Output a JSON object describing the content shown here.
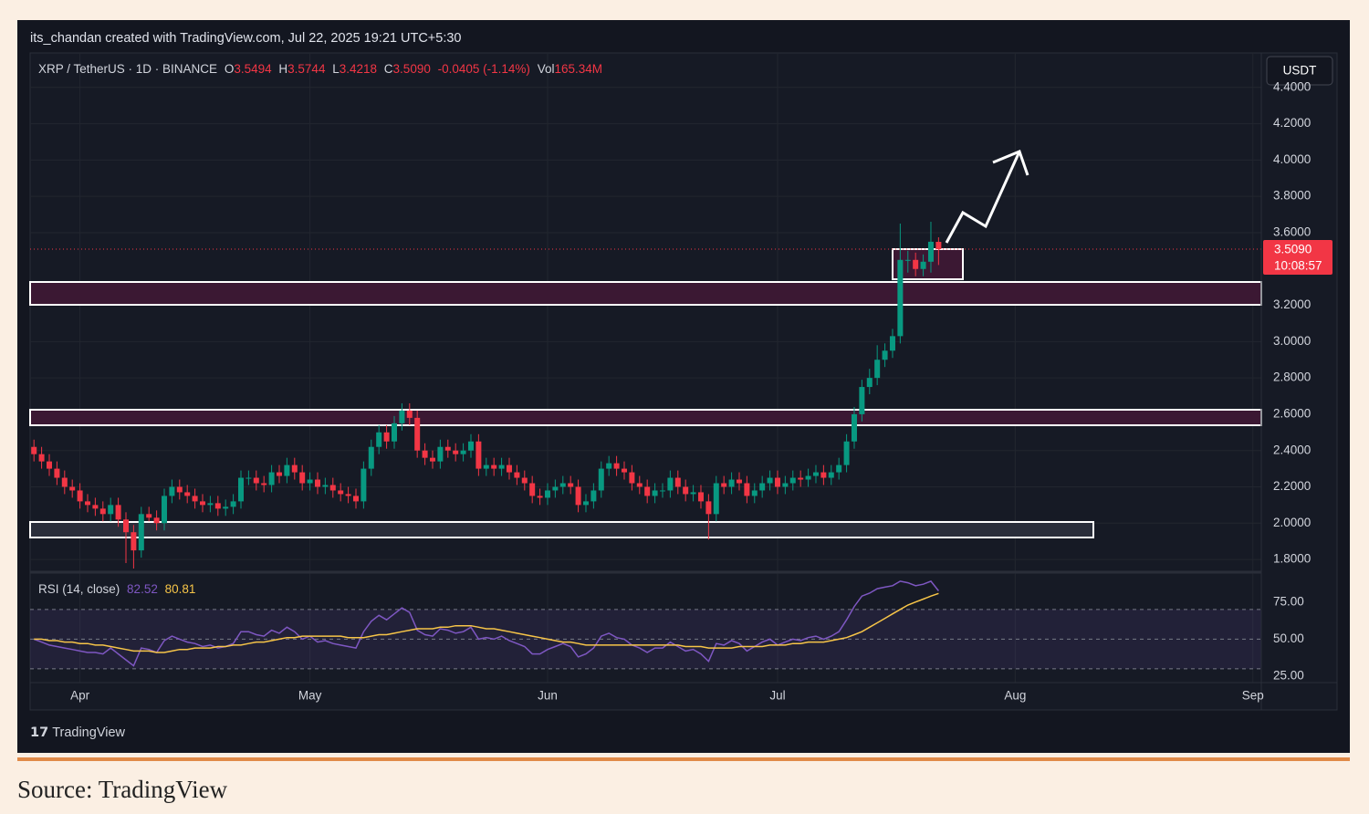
{
  "header": "its_chandan created with TradingView.com, Jul 22, 2025 19:21 UTC+5:30",
  "footer_logo": "TradingView",
  "source": "Source: TradingView",
  "chart_data": [
    {
      "type": "candlestick",
      "title": "XRP / TetherUS · 1D · BINANCE",
      "legend": {
        "fields": [
          {
            "key": "O",
            "value": "3.5494"
          },
          {
            "key": "H",
            "value": "3.5744"
          },
          {
            "key": "L",
            "value": "3.4218"
          },
          {
            "key": "C",
            "value": "3.5090"
          }
        ],
        "change": "-0.0405 (-1.14%)",
        "vol_key": "Vol",
        "vol": "165.34M"
      },
      "currency": "USDT",
      "last_price_label": "3.5090",
      "countdown": "10:08:57",
      "up_color": "#089981",
      "down_color": "#f23645",
      "open": [
        2.42,
        2.38,
        2.34,
        2.3,
        2.25,
        2.2,
        2.18,
        2.12,
        2.1,
        2.08,
        2.05,
        2.1,
        2.02,
        1.95,
        1.85,
        2.05,
        2.03,
        2.0,
        2.15,
        2.2,
        2.17,
        2.15,
        2.12,
        2.1,
        2.11,
        2.08,
        2.09,
        2.12,
        2.25,
        2.25,
        2.22,
        2.21,
        2.28,
        2.26,
        2.32,
        2.28,
        2.22,
        2.24,
        2.2,
        2.21,
        2.18,
        2.16,
        2.15,
        2.12,
        2.3,
        2.42,
        2.5,
        2.45,
        2.55,
        2.62,
        2.58,
        2.4,
        2.36,
        2.34,
        2.42,
        2.4,
        2.38,
        2.4,
        2.45,
        2.3,
        2.32,
        2.3,
        2.32,
        2.28,
        2.25,
        2.22,
        2.15,
        2.14,
        2.18,
        2.2,
        2.22,
        2.2,
        2.1,
        2.12,
        2.18,
        2.3,
        2.33,
        2.3,
        2.28,
        2.22,
        2.2,
        2.15,
        2.18,
        2.18,
        2.25,
        2.2,
        2.16,
        2.17,
        2.12,
        2.05,
        2.22,
        2.2,
        2.24,
        2.22,
        2.15,
        2.18,
        2.22,
        2.25,
        2.2,
        2.22,
        2.25,
        2.24,
        2.26,
        2.28,
        2.25,
        2.28,
        2.32,
        2.45,
        2.6,
        2.75,
        2.8,
        2.9,
        2.95,
        3.03,
        3.45,
        3.45,
        3.4,
        3.44,
        3.5494
      ],
      "high": [
        2.46,
        2.42,
        2.38,
        2.34,
        2.29,
        2.24,
        2.22,
        2.16,
        2.14,
        2.12,
        2.14,
        2.14,
        2.06,
        1.99,
        2.09,
        2.09,
        2.07,
        2.19,
        2.24,
        2.24,
        2.21,
        2.19,
        2.16,
        2.15,
        2.15,
        2.13,
        2.16,
        2.29,
        2.29,
        2.29,
        2.26,
        2.32,
        2.32,
        2.36,
        2.36,
        2.32,
        2.28,
        2.28,
        2.25,
        2.25,
        2.22,
        2.2,
        2.19,
        2.34,
        2.46,
        2.54,
        2.54,
        2.59,
        2.66,
        2.66,
        2.62,
        2.44,
        2.4,
        2.46,
        2.46,
        2.44,
        2.44,
        2.49,
        2.49,
        2.36,
        2.36,
        2.36,
        2.36,
        2.32,
        2.29,
        2.26,
        2.19,
        2.22,
        2.24,
        2.26,
        2.26,
        2.24,
        2.16,
        2.22,
        2.34,
        2.37,
        2.37,
        2.34,
        2.32,
        2.26,
        2.24,
        2.22,
        2.22,
        2.29,
        2.29,
        2.24,
        2.21,
        2.21,
        2.16,
        2.26,
        2.26,
        2.28,
        2.28,
        2.26,
        2.22,
        2.26,
        2.29,
        2.29,
        2.26,
        2.29,
        2.29,
        2.3,
        2.32,
        2.32,
        2.32,
        2.36,
        2.49,
        2.64,
        2.79,
        2.85,
        2.98,
        2.99,
        3.07,
        3.65,
        3.5,
        3.49,
        3.48,
        3.66,
        3.5744
      ],
      "low": [
        2.34,
        2.3,
        2.26,
        2.21,
        2.16,
        2.14,
        2.08,
        2.06,
        2.04,
        2.01,
        2.01,
        1.98,
        1.78,
        1.75,
        1.81,
        2.01,
        1.96,
        1.96,
        2.11,
        2.13,
        2.11,
        2.08,
        2.06,
        2.06,
        2.04,
        2.04,
        2.05,
        2.08,
        2.21,
        2.18,
        2.17,
        2.17,
        2.22,
        2.22,
        2.24,
        2.18,
        2.18,
        2.16,
        2.16,
        2.14,
        2.12,
        2.11,
        2.08,
        2.08,
        2.26,
        2.38,
        2.41,
        2.41,
        2.51,
        2.54,
        2.36,
        2.32,
        2.3,
        2.3,
        2.36,
        2.34,
        2.34,
        2.36,
        2.26,
        2.26,
        2.26,
        2.26,
        2.24,
        2.21,
        2.18,
        2.11,
        2.1,
        2.1,
        2.14,
        2.16,
        2.16,
        2.06,
        2.06,
        2.08,
        2.14,
        2.26,
        2.26,
        2.24,
        2.18,
        2.16,
        2.11,
        2.11,
        2.14,
        2.14,
        2.16,
        2.12,
        2.12,
        2.08,
        1.91,
        2.01,
        2.16,
        2.16,
        2.18,
        2.11,
        2.11,
        2.14,
        2.18,
        2.16,
        2.16,
        2.18,
        2.2,
        2.2,
        2.22,
        2.21,
        2.21,
        2.24,
        2.28,
        2.41,
        2.56,
        2.71,
        2.76,
        2.86,
        2.91,
        2.99,
        3.38,
        3.36,
        3.36,
        3.38,
        3.4218
      ],
      "close": [
        2.38,
        2.34,
        2.3,
        2.25,
        2.2,
        2.18,
        2.12,
        2.1,
        2.08,
        2.05,
        2.1,
        2.02,
        1.95,
        1.85,
        2.05,
        2.03,
        2.0,
        2.15,
        2.2,
        2.17,
        2.15,
        2.12,
        2.1,
        2.11,
        2.08,
        2.09,
        2.12,
        2.25,
        2.25,
        2.22,
        2.21,
        2.28,
        2.26,
        2.32,
        2.28,
        2.22,
        2.24,
        2.2,
        2.21,
        2.18,
        2.16,
        2.15,
        2.12,
        2.3,
        2.42,
        2.5,
        2.45,
        2.55,
        2.62,
        2.58,
        2.4,
        2.36,
        2.34,
        2.42,
        2.4,
        2.38,
        2.4,
        2.45,
        2.3,
        2.32,
        2.3,
        2.32,
        2.28,
        2.25,
        2.22,
        2.15,
        2.14,
        2.18,
        2.2,
        2.22,
        2.2,
        2.1,
        2.12,
        2.18,
        2.3,
        2.33,
        2.3,
        2.28,
        2.22,
        2.2,
        2.15,
        2.18,
        2.18,
        2.25,
        2.2,
        2.16,
        2.17,
        2.12,
        2.05,
        2.22,
        2.2,
        2.24,
        2.22,
        2.15,
        2.18,
        2.22,
        2.25,
        2.2,
        2.22,
        2.25,
        2.24,
        2.26,
        2.28,
        2.25,
        2.28,
        2.32,
        2.45,
        2.6,
        2.75,
        2.8,
        2.9,
        2.95,
        3.03,
        3.45,
        3.45,
        3.4,
        3.44,
        3.55,
        3.509
      ],
      "xlim": [
        -0.5,
        160.1
      ],
      "xticks": [
        {
          "value": 6,
          "label": "Apr"
        },
        {
          "value": 36,
          "label": "May"
        },
        {
          "value": 67,
          "label": "Jun"
        },
        {
          "value": 97,
          "label": "Jul"
        },
        {
          "value": 128,
          "label": "Aug"
        },
        {
          "value": 159,
          "label": "Sep"
        }
      ],
      "ylim": [
        1.74,
        4.59
      ],
      "yticks": [
        {
          "value": 1.8,
          "label": "1.8000"
        },
        {
          "value": 2.0,
          "label": "2.0000"
        },
        {
          "value": 2.2,
          "label": "2.2000"
        },
        {
          "value": 2.4,
          "label": "2.4000"
        },
        {
          "value": 2.6,
          "label": "2.6000"
        },
        {
          "value": 2.8,
          "label": "2.8000"
        },
        {
          "value": 3.0,
          "label": "3.0000"
        },
        {
          "value": 3.2,
          "label": "3.2000"
        },
        {
          "value": 3.6,
          "label": "3.6000"
        },
        {
          "value": 3.8,
          "label": "3.8000"
        },
        {
          "value": 4.0,
          "label": "4.0000"
        },
        {
          "value": 4.2,
          "label": "4.2000"
        },
        {
          "value": 4.4,
          "label": "4.4000"
        }
      ],
      "grid": true
    },
    {
      "type": "line",
      "title": "RSI (14, close)",
      "series": [
        {
          "label": "82.52",
          "color": "#7e57c2",
          "values": [
            50,
            48,
            46,
            45,
            44,
            43,
            42,
            41,
            41,
            40,
            44,
            40,
            36,
            32,
            44,
            43,
            41,
            49,
            52,
            50,
            48,
            47,
            45,
            46,
            44,
            45,
            47,
            55,
            55,
            53,
            52,
            56,
            54,
            58,
            55,
            50,
            52,
            48,
            49,
            47,
            46,
            45,
            44,
            55,
            62,
            66,
            63,
            67,
            71,
            68,
            56,
            53,
            52,
            57,
            56,
            54,
            55,
            58,
            50,
            51,
            50,
            52,
            49,
            47,
            45,
            40,
            40,
            43,
            45,
            47,
            45,
            38,
            40,
            44,
            52,
            54,
            51,
            50,
            46,
            44,
            41,
            44,
            44,
            48,
            45,
            42,
            43,
            40,
            35,
            47,
            46,
            49,
            47,
            42,
            45,
            48,
            50,
            46,
            48,
            50,
            49,
            51,
            52,
            50,
            52,
            55,
            63,
            72,
            79,
            81,
            84,
            85,
            86,
            89,
            88,
            86,
            87,
            89,
            82.52
          ]
        },
        {
          "label": "80.81",
          "color": "#f7c548",
          "values": [
            50,
            50,
            49,
            49,
            48,
            48,
            47,
            47,
            46,
            46,
            45,
            44,
            43,
            42,
            42,
            42,
            41,
            41,
            42,
            43,
            43,
            44,
            44,
            44,
            45,
            45,
            46,
            46,
            47,
            48,
            48,
            49,
            50,
            51,
            51,
            52,
            52,
            52,
            52,
            52,
            52,
            51,
            51,
            51,
            52,
            53,
            53,
            54,
            55,
            56,
            57,
            57,
            57,
            58,
            58,
            59,
            59,
            59,
            58,
            57,
            57,
            56,
            55,
            54,
            53,
            52,
            51,
            50,
            49,
            48,
            48,
            47,
            46,
            46,
            46,
            46,
            46,
            46,
            46,
            46,
            46,
            46,
            46,
            46,
            46,
            45,
            45,
            45,
            44,
            44,
            44,
            44,
            45,
            45,
            45,
            45,
            46,
            46,
            46,
            47,
            47,
            48,
            48,
            48,
            49,
            50,
            51,
            53,
            55,
            58,
            61,
            64,
            67,
            70,
            73,
            75,
            77,
            79,
            80.81
          ]
        }
      ],
      "band": [
        30,
        70
      ],
      "hlines": [
        70,
        50,
        30
      ],
      "ylim": [
        20.7,
        94.5
      ],
      "yticks": [
        {
          "value": 25,
          "label": "25.00"
        },
        {
          "value": 50,
          "label": "50.00"
        },
        {
          "value": 75,
          "label": "75.00"
        }
      ]
    }
  ]
}
